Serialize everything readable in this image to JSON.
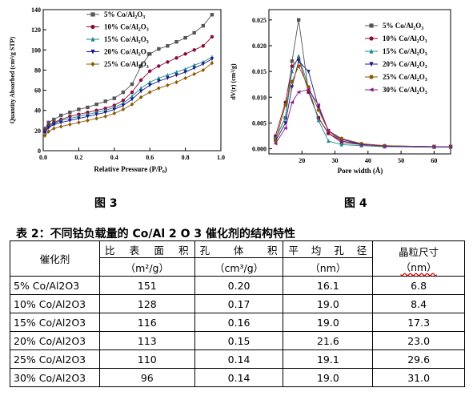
{
  "figures": {
    "fig3_caption": "图 3",
    "fig4_caption": "图 4"
  },
  "chart_data": [
    {
      "type": "line",
      "xlabel": "Relative Pressure (P/P₀)",
      "ylabel": "Quantity Absorbed (cm³/g STP)",
      "xlim": [
        0.0,
        1.0
      ],
      "ylim": [
        0,
        140
      ],
      "x_ticks": [
        "0.0",
        "0.2",
        "0.4",
        "0.6",
        "0.8",
        "1.0"
      ],
      "y_ticks": [
        "0",
        "20",
        "40",
        "60",
        "80",
        "100",
        "120",
        "140"
      ],
      "legend_position": "top-right",
      "series": [
        {
          "name": "5% Co/Al₂O₃",
          "color": "#555555",
          "marker": "square",
          "x": [
            0.01,
            0.03,
            0.06,
            0.1,
            0.15,
            0.2,
            0.25,
            0.3,
            0.35,
            0.4,
            0.45,
            0.5,
            0.55,
            0.6,
            0.65,
            0.7,
            0.75,
            0.8,
            0.85,
            0.9,
            0.95
          ],
          "y": [
            22,
            28,
            31,
            35,
            38,
            41,
            43,
            46,
            49,
            52,
            58,
            66,
            84,
            96,
            101,
            104,
            108,
            112,
            117,
            124,
            135
          ]
        },
        {
          "name": "10% Co/Al₂O₃",
          "color": "#8b0a3c",
          "marker": "circle",
          "x": [
            0.01,
            0.03,
            0.06,
            0.1,
            0.15,
            0.2,
            0.25,
            0.3,
            0.35,
            0.4,
            0.45,
            0.5,
            0.55,
            0.6,
            0.65,
            0.7,
            0.75,
            0.8,
            0.85,
            0.9,
            0.95
          ],
          "y": [
            20,
            25,
            28,
            31,
            34,
            36,
            38,
            40,
            42,
            45,
            50,
            58,
            70,
            79,
            84,
            88,
            92,
            96,
            100,
            104,
            113
          ]
        },
        {
          "name": "15% Co/Al₂O₃",
          "color": "#1a8a8a",
          "marker": "triangle-up",
          "x": [
            0.01,
            0.03,
            0.06,
            0.1,
            0.15,
            0.2,
            0.25,
            0.3,
            0.35,
            0.4,
            0.45,
            0.5,
            0.55,
            0.6,
            0.65,
            0.7,
            0.75,
            0.8,
            0.85,
            0.9,
            0.95
          ],
          "y": [
            19,
            24,
            27,
            30,
            32,
            34,
            36,
            38,
            40,
            43,
            47,
            54,
            62,
            68,
            72,
            75,
            78,
            81,
            85,
            88,
            93
          ]
        },
        {
          "name": "20% Co/Al₂O₃",
          "color": "#1a1a8c",
          "marker": "triangle-down",
          "x": [
            0.01,
            0.03,
            0.06,
            0.1,
            0.15,
            0.2,
            0.25,
            0.3,
            0.35,
            0.4,
            0.45,
            0.5,
            0.55,
            0.6,
            0.65,
            0.7,
            0.75,
            0.8,
            0.85,
            0.9,
            0.95
          ],
          "y": [
            18,
            23,
            26,
            28,
            30,
            32,
            34,
            36,
            38,
            41,
            45,
            51,
            59,
            65,
            69,
            72,
            75,
            78,
            82,
            86,
            91
          ]
        },
        {
          "name": "25% Co/Al₂O₃",
          "color": "#8b5a00",
          "marker": "diamond",
          "x": [
            0.01,
            0.03,
            0.06,
            0.1,
            0.15,
            0.2,
            0.25,
            0.3,
            0.35,
            0.4,
            0.45,
            0.5,
            0.55,
            0.6,
            0.65,
            0.7,
            0.75,
            0.8,
            0.85,
            0.9,
            0.95
          ],
          "y": [
            15,
            19,
            22,
            24,
            26,
            28,
            30,
            32,
            34,
            37,
            41,
            46,
            53,
            58,
            62,
            65,
            68,
            72,
            76,
            80,
            87
          ]
        }
      ]
    },
    {
      "type": "line",
      "xlabel": "Pore width (Å)",
      "ylabel": "dV(r) (cm³/g)",
      "xlim": [
        10,
        65
      ],
      "ylim": [
        -0.001,
        0.027
      ],
      "x_ticks": [
        "20",
        "30",
        "40",
        "50",
        "60"
      ],
      "y_ticks": [
        "0.000",
        "0.005",
        "0.010",
        "0.015",
        "0.020",
        "0.025"
      ],
      "legend_position": "top-right",
      "series": [
        {
          "name": "5% Co/Al₂O₃",
          "color": "#555555",
          "marker": "square",
          "x": [
            12,
            15,
            17,
            19,
            22,
            25,
            28,
            32,
            38,
            45,
            60,
            65
          ],
          "y": [
            0.002,
            0.006,
            0.017,
            0.025,
            0.011,
            0.006,
            0.003,
            0.0012,
            0.0008,
            0.0005,
            0.0004,
            0.0004
          ]
        },
        {
          "name": "10% Co/Al₂O₃",
          "color": "#8b0a3c",
          "marker": "circle",
          "x": [
            12,
            15,
            17,
            19,
            22,
            25,
            28,
            32,
            38,
            45,
            60,
            65
          ],
          "y": [
            0.0025,
            0.009,
            0.016,
            0.0175,
            0.011,
            0.006,
            0.003,
            0.0015,
            0.0009,
            0.0006,
            0.0004,
            0.0004
          ]
        },
        {
          "name": "15% Co/Al₂O₃",
          "color": "#1a8a8a",
          "marker": "triangle-up",
          "x": [
            12,
            15,
            17,
            19,
            22,
            25,
            28,
            32,
            38,
            45,
            60,
            65
          ],
          "y": [
            0.002,
            0.006,
            0.015,
            0.018,
            0.012,
            0.0055,
            0.0015,
            0.0008,
            0.0006,
            0.0004,
            0.0003,
            0.0003
          ]
        },
        {
          "name": "20% Co/Al₂O₃",
          "color": "#1a1a8c",
          "marker": "triangle-down",
          "x": [
            12,
            15,
            17,
            19,
            22,
            25,
            28,
            32,
            38,
            45,
            60,
            65
          ],
          "y": [
            0.0015,
            0.005,
            0.012,
            0.017,
            0.015,
            0.008,
            0.0035,
            0.0018,
            0.0009,
            0.0005,
            0.0004,
            0.0004
          ]
        },
        {
          "name": "25% Co/Al₂O₃",
          "color": "#8b5a00",
          "marker": "circle",
          "x": [
            12,
            15,
            17,
            19,
            22,
            25,
            28,
            32,
            38,
            45,
            60,
            65
          ],
          "y": [
            0.0015,
            0.0085,
            0.013,
            0.016,
            0.012,
            0.0075,
            0.0035,
            0.002,
            0.001,
            0.0006,
            0.0004,
            0.0004
          ]
        },
        {
          "name": "30% Co/Al₂O₃",
          "color": "#8b1a8c",
          "marker": "triangle-left",
          "x": [
            12,
            15,
            17,
            19,
            22,
            25,
            28,
            32,
            38,
            45,
            60,
            65
          ],
          "y": [
            0.001,
            0.004,
            0.009,
            0.011,
            0.0115,
            0.0085,
            0.0035,
            0.0015,
            0.0008,
            0.0005,
            0.0004,
            0.0004
          ]
        }
      ]
    }
  ],
  "table": {
    "title": "表 2：不同钴负载量的 Co/Al 2 O 3 催化剂的结构特性",
    "headers": {
      "catalyst": "催化剂",
      "surface_area": "比表面积",
      "surface_area_unit": "（m²/g）",
      "pore_volume": "孔体积",
      "pore_volume_unit": "（cm³/g）",
      "pore_size": "平均孔径",
      "pore_size_unit": "（nm）",
      "crystal_size": "晶粒尺寸",
      "crystal_size_unit": "（nm）"
    },
    "rows": [
      {
        "name": "5% Co/Al2O3",
        "sa": "151",
        "pv": "0.20",
        "ps": "16.1",
        "cs": "6.8"
      },
      {
        "name": "10% Co/Al2O3",
        "sa": "128",
        "pv": "0.17",
        "ps": "19.0",
        "cs": "8.4"
      },
      {
        "name": "15% Co/Al2O3",
        "sa": "116",
        "pv": "0.16",
        "ps": "19.0",
        "cs": "17.3"
      },
      {
        "name": "20% Co/Al2O3",
        "sa": "113",
        "pv": "0.15",
        "ps": "21.6",
        "cs": "23.0"
      },
      {
        "name": "25% Co/Al2O3",
        "sa": "110",
        "pv": "0.14",
        "ps": "19.1",
        "cs": "29.6"
      },
      {
        "name": "30% Co/Al2O3",
        "sa": "96",
        "pv": "0.14",
        "ps": "19.0",
        "cs": "31.0"
      }
    ]
  }
}
